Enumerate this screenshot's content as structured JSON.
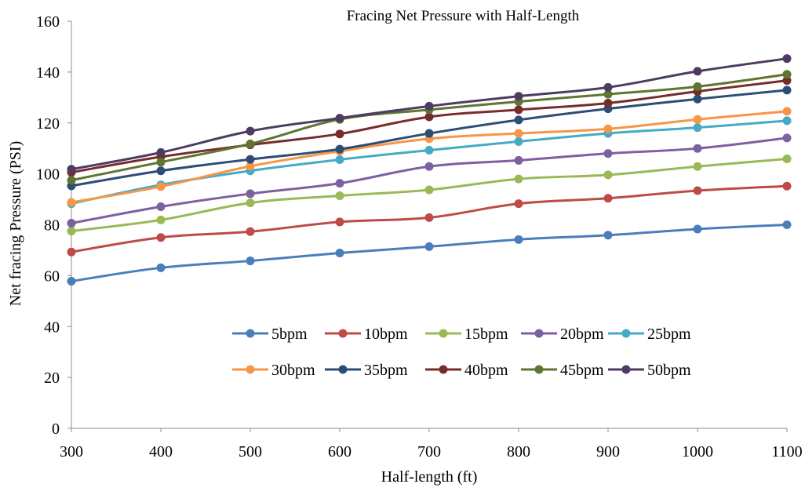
{
  "chart_data": {
    "type": "line",
    "title": "Fracing Net Pressure with Half-Length",
    "xlabel": "Half-length (ft)",
    "ylabel": "Net fracing Pressure (PSI)",
    "xlim": [
      300,
      1100
    ],
    "ylim": [
      0,
      160
    ],
    "xticks": [
      300,
      400,
      500,
      600,
      700,
      800,
      900,
      1000,
      1100
    ],
    "yticks": [
      0,
      20,
      40,
      60,
      80,
      100,
      120,
      140,
      160
    ],
    "grid": false,
    "legend_position": "lower-center",
    "smooth": true,
    "x": [
      300,
      400,
      500,
      600,
      700,
      800,
      900,
      1000,
      1100
    ],
    "series": [
      {
        "name": "5bpm",
        "color": "#4a7ebb",
        "values": [
          57.8,
          63.1,
          65.8,
          68.9,
          71.4,
          74.2,
          75.9,
          78.3,
          80.0
        ]
      },
      {
        "name": "10bpm",
        "color": "#be4b48",
        "values": [
          69.3,
          75.0,
          77.3,
          81.1,
          82.8,
          88.3,
          90.4,
          93.4,
          95.2
        ]
      },
      {
        "name": "15bpm",
        "color": "#98b954",
        "values": [
          77.5,
          81.9,
          88.6,
          91.4,
          93.7,
          98.0,
          99.6,
          102.9,
          105.9
        ]
      },
      {
        "name": "20bpm",
        "color": "#7d60a0",
        "values": [
          80.6,
          87.1,
          92.2,
          96.3,
          102.9,
          105.3,
          108.0,
          110.0,
          114.1
        ]
      },
      {
        "name": "25bpm",
        "color": "#46aac5",
        "values": [
          88.3,
          95.7,
          101.2,
          105.6,
          109.3,
          112.7,
          115.9,
          118.2,
          120.9
        ]
      },
      {
        "name": "30bpm",
        "color": "#f79646",
        "values": [
          88.8,
          95.0,
          103.0,
          108.9,
          113.8,
          115.9,
          117.7,
          121.4,
          124.6
        ]
      },
      {
        "name": "35bpm",
        "color": "#2c4d75",
        "values": [
          95.3,
          101.2,
          105.7,
          109.7,
          115.9,
          121.2,
          125.6,
          129.4,
          132.9
        ]
      },
      {
        "name": "40bpm",
        "color": "#772c2a",
        "values": [
          100.6,
          106.7,
          111.4,
          115.7,
          122.4,
          125.2,
          127.8,
          132.4,
          136.7
        ]
      },
      {
        "name": "45bpm",
        "color": "#5f7530",
        "values": [
          97.5,
          104.6,
          111.8,
          121.4,
          125.2,
          128.4,
          131.3,
          134.3,
          139.1
        ]
      },
      {
        "name": "50bpm",
        "color": "#4d3b62",
        "values": [
          101.8,
          108.4,
          116.8,
          121.9,
          126.6,
          130.5,
          134.0,
          140.3,
          145.3
        ]
      }
    ]
  }
}
